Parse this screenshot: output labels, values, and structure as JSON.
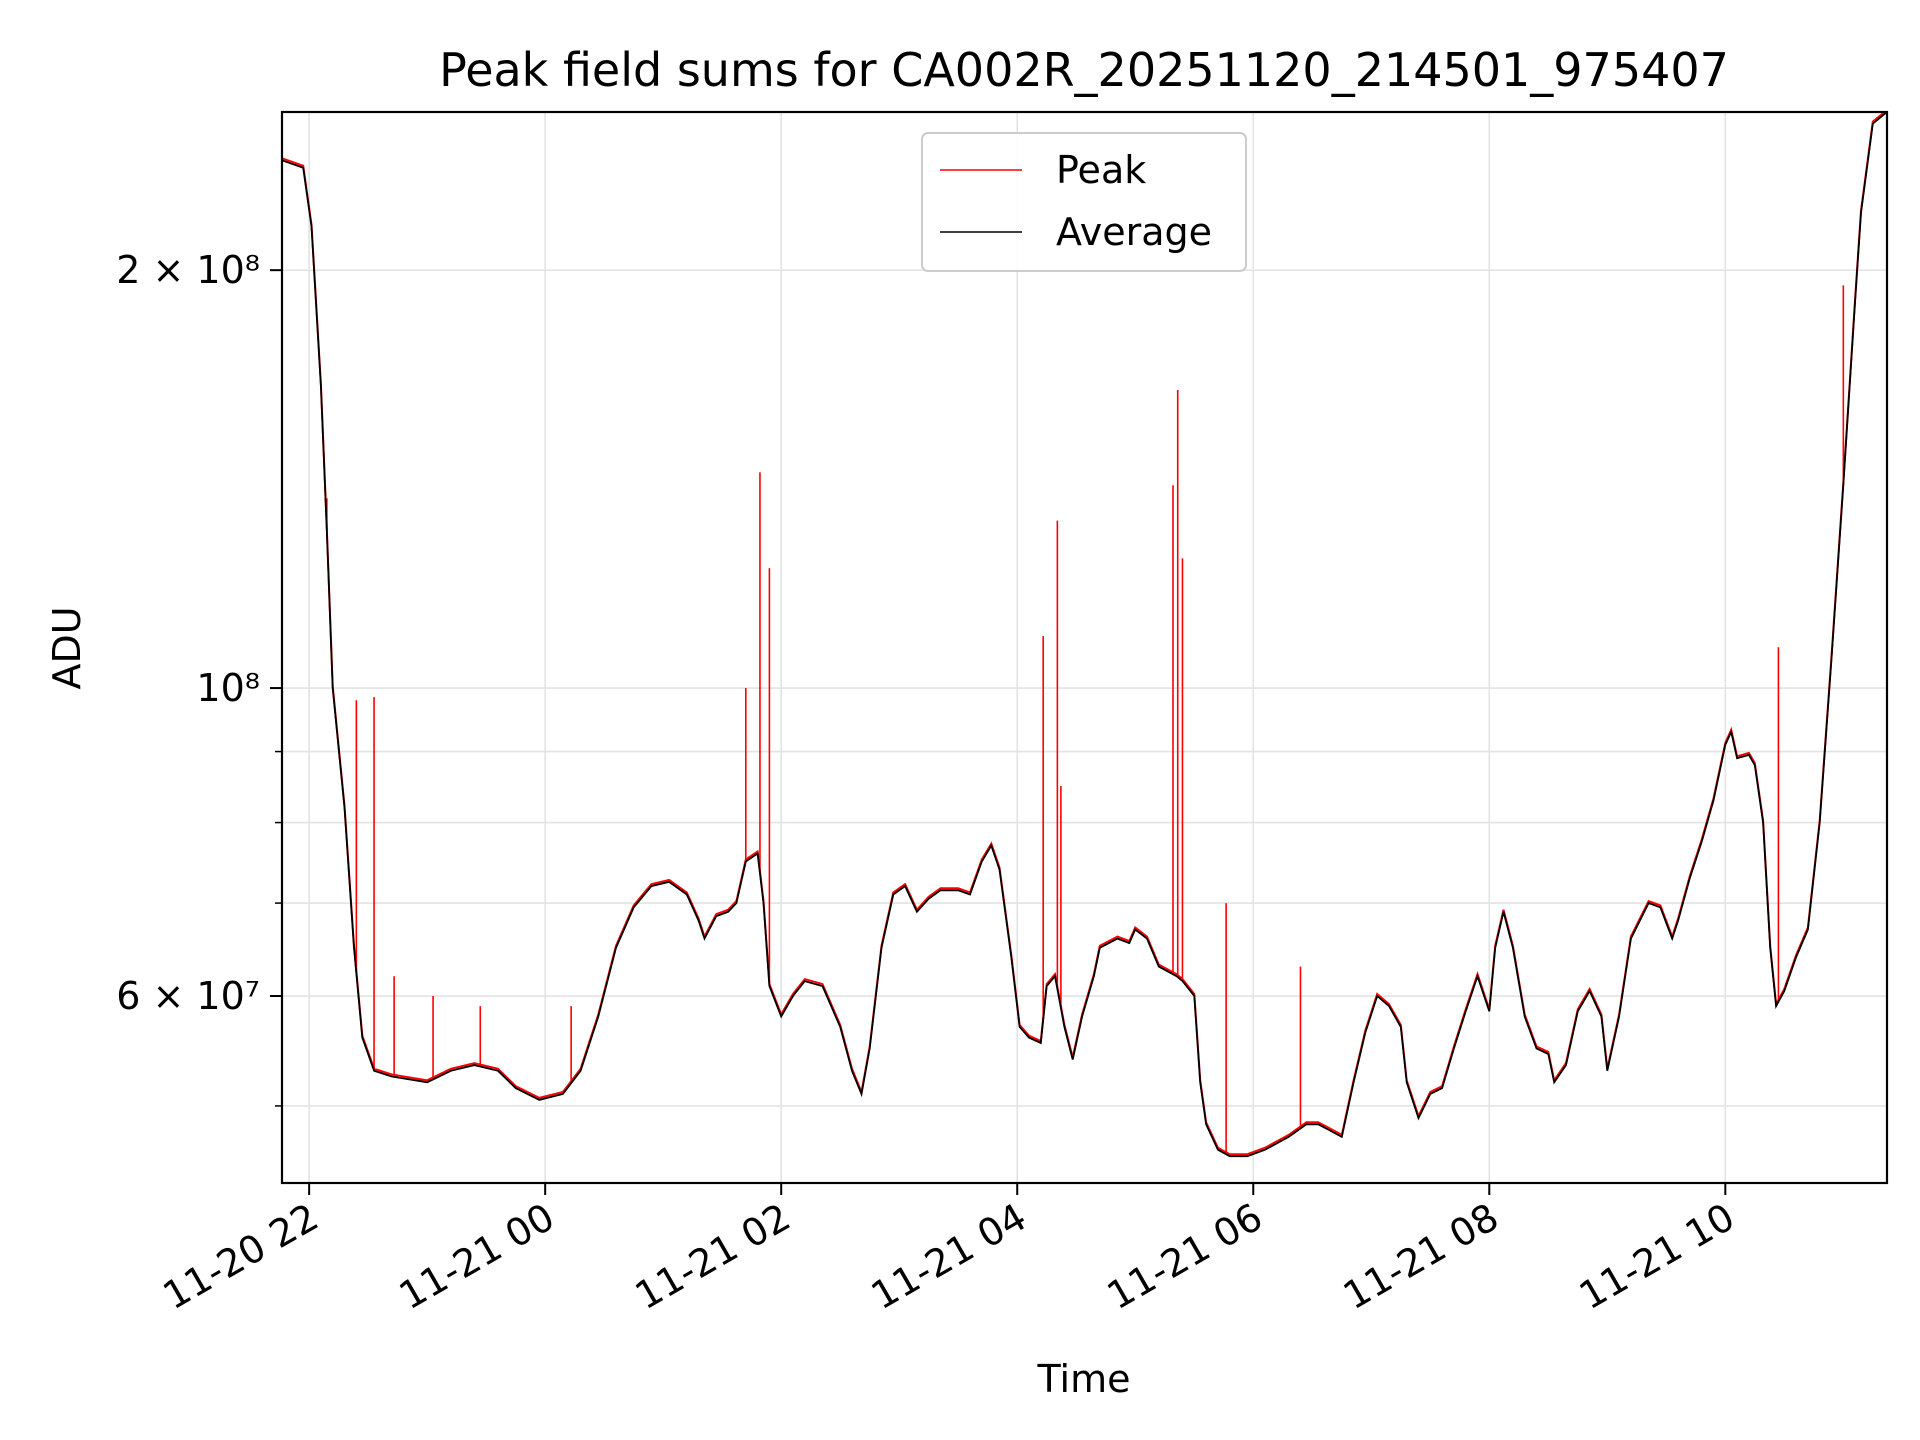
{
  "chart_data": {
    "type": "line",
    "title": "Peak field sums for CA002R_20251120_214501_975407",
    "xlabel": "Time",
    "ylabel": "ADU",
    "grid": true,
    "legend_position": "top-center",
    "y_scale": "log",
    "xlim_hours": [
      -0.23,
      13.37
    ],
    "ylim": [
      44000000,
      260000000
    ],
    "x_ticks": [
      {
        "hour": 0,
        "label": "11-20 22"
      },
      {
        "hour": 2,
        "label": "11-21 00"
      },
      {
        "hour": 4,
        "label": "11-21 02"
      },
      {
        "hour": 6,
        "label": "11-21 04"
      },
      {
        "hour": 8,
        "label": "11-21 06"
      },
      {
        "hour": 10,
        "label": "11-21 08"
      },
      {
        "hour": 12,
        "label": "11-21 10"
      }
    ],
    "y_major_ticks": [
      {
        "value": 60000000,
        "label": "6 × 10⁷"
      },
      {
        "value": 100000000,
        "label": "10⁸"
      },
      {
        "value": 200000000,
        "label": "2 × 10⁸"
      }
    ],
    "y_minor_ticks": [
      50000000,
      70000000,
      80000000,
      90000000
    ],
    "x_unit": "hours since 2025-11-20 22:00",
    "series": [
      {
        "name": "Average",
        "color": "#000000",
        "points": [
          [
            -0.23,
            240000000
          ],
          [
            -0.05,
            237000000
          ],
          [
            0.02,
            215000000
          ],
          [
            0.1,
            165000000
          ],
          [
            0.15,
            130000000
          ],
          [
            0.2,
            100000000
          ],
          [
            0.3,
            82000000
          ],
          [
            0.38,
            65000000
          ],
          [
            0.45,
            56000000
          ],
          [
            0.55,
            53000000
          ],
          [
            0.7,
            52500000
          ],
          [
            1.0,
            52000000
          ],
          [
            1.2,
            53000000
          ],
          [
            1.4,
            53500000
          ],
          [
            1.6,
            53000000
          ],
          [
            1.75,
            51500000
          ],
          [
            1.95,
            50500000
          ],
          [
            2.15,
            51000000
          ],
          [
            2.3,
            53000000
          ],
          [
            2.45,
            58000000
          ],
          [
            2.6,
            65000000
          ],
          [
            2.75,
            69500000
          ],
          [
            2.9,
            72000000
          ],
          [
            3.05,
            72500000
          ],
          [
            3.2,
            71000000
          ],
          [
            3.3,
            68000000
          ],
          [
            3.35,
            66000000
          ],
          [
            3.45,
            68500000
          ],
          [
            3.55,
            69000000
          ],
          [
            3.62,
            70000000
          ],
          [
            3.7,
            75000000
          ],
          [
            3.8,
            76000000
          ],
          [
            3.85,
            70000000
          ],
          [
            3.9,
            61000000
          ],
          [
            4.0,
            58000000
          ],
          [
            4.1,
            60000000
          ],
          [
            4.2,
            61500000
          ],
          [
            4.35,
            61000000
          ],
          [
            4.5,
            57000000
          ],
          [
            4.6,
            53000000
          ],
          [
            4.68,
            51000000
          ],
          [
            4.75,
            55000000
          ],
          [
            4.85,
            65000000
          ],
          [
            4.95,
            71000000
          ],
          [
            5.05,
            72000000
          ],
          [
            5.15,
            69000000
          ],
          [
            5.25,
            70500000
          ],
          [
            5.35,
            71500000
          ],
          [
            5.5,
            71500000
          ],
          [
            5.6,
            71000000
          ],
          [
            5.7,
            75000000
          ],
          [
            5.78,
            77000000
          ],
          [
            5.85,
            74000000
          ],
          [
            5.95,
            64000000
          ],
          [
            6.02,
            57000000
          ],
          [
            6.1,
            56000000
          ],
          [
            6.2,
            55500000
          ],
          [
            6.25,
            61000000
          ],
          [
            6.32,
            62000000
          ],
          [
            6.4,
            57000000
          ],
          [
            6.47,
            54000000
          ],
          [
            6.55,
            58000000
          ],
          [
            6.65,
            62000000
          ],
          [
            6.7,
            65000000
          ],
          [
            6.85,
            66000000
          ],
          [
            6.95,
            65500000
          ],
          [
            7.0,
            67000000
          ],
          [
            7.1,
            66000000
          ],
          [
            7.2,
            63000000
          ],
          [
            7.35,
            62000000
          ],
          [
            7.4,
            61500000
          ],
          [
            7.5,
            60000000
          ],
          [
            7.55,
            52000000
          ],
          [
            7.6,
            48500000
          ],
          [
            7.7,
            46500000
          ],
          [
            7.8,
            46000000
          ],
          [
            7.95,
            46000000
          ],
          [
            8.1,
            46500000
          ],
          [
            8.3,
            47500000
          ],
          [
            8.45,
            48500000
          ],
          [
            8.55,
            48500000
          ],
          [
            8.65,
            48000000
          ],
          [
            8.75,
            47500000
          ],
          [
            8.85,
            52000000
          ],
          [
            8.95,
            56500000
          ],
          [
            9.05,
            60000000
          ],
          [
            9.15,
            59000000
          ],
          [
            9.25,
            57000000
          ],
          [
            9.3,
            52000000
          ],
          [
            9.4,
            49000000
          ],
          [
            9.5,
            51000000
          ],
          [
            9.6,
            51500000
          ],
          [
            9.7,
            55000000
          ],
          [
            9.8,
            58500000
          ],
          [
            9.9,
            62000000
          ],
          [
            10.0,
            58500000
          ],
          [
            10.05,
            65000000
          ],
          [
            10.12,
            69000000
          ],
          [
            10.2,
            65000000
          ],
          [
            10.3,
            58000000
          ],
          [
            10.4,
            55000000
          ],
          [
            10.5,
            54500000
          ],
          [
            10.55,
            52000000
          ],
          [
            10.65,
            53500000
          ],
          [
            10.75,
            58500000
          ],
          [
            10.85,
            60500000
          ],
          [
            10.95,
            58000000
          ],
          [
            11.0,
            53000000
          ],
          [
            11.1,
            58000000
          ],
          [
            11.2,
            66000000
          ],
          [
            11.35,
            70000000
          ],
          [
            11.45,
            69500000
          ],
          [
            11.55,
            66000000
          ],
          [
            11.6,
            68000000
          ],
          [
            11.7,
            73000000
          ],
          [
            11.8,
            77500000
          ],
          [
            11.9,
            83000000
          ],
          [
            12.0,
            91000000
          ],
          [
            12.05,
            93000000
          ],
          [
            12.1,
            89000000
          ],
          [
            12.2,
            89500000
          ],
          [
            12.25,
            88000000
          ],
          [
            12.32,
            80000000
          ],
          [
            12.38,
            65000000
          ],
          [
            12.43,
            59000000
          ],
          [
            12.5,
            60500000
          ],
          [
            12.6,
            64000000
          ],
          [
            12.7,
            67000000
          ],
          [
            12.8,
            80000000
          ],
          [
            12.9,
            105000000
          ],
          [
            13.0,
            140000000
          ],
          [
            13.1,
            190000000
          ],
          [
            13.15,
            220000000
          ],
          [
            13.25,
            255000000
          ],
          [
            13.37,
            260000000
          ]
        ]
      },
      {
        "name": "Peak",
        "color": "#ff0000",
        "spikes": [
          [
            0.15,
            137000000
          ],
          [
            0.4,
            98000000
          ],
          [
            0.55,
            98500000
          ],
          [
            0.72,
            62000000
          ],
          [
            1.05,
            60000000
          ],
          [
            1.45,
            59000000
          ],
          [
            2.22,
            59000000
          ],
          [
            3.7,
            100000000
          ],
          [
            3.82,
            143000000
          ],
          [
            3.9,
            122000000
          ],
          [
            6.22,
            109000000
          ],
          [
            6.34,
            132000000
          ],
          [
            6.37,
            85000000
          ],
          [
            7.32,
            140000000
          ],
          [
            7.36,
            164000000
          ],
          [
            7.4,
            124000000
          ],
          [
            7.77,
            70000000
          ],
          [
            8.4,
            63000000
          ],
          [
            12.45,
            107000000
          ],
          [
            13.0,
            195000000
          ]
        ]
      }
    ]
  }
}
